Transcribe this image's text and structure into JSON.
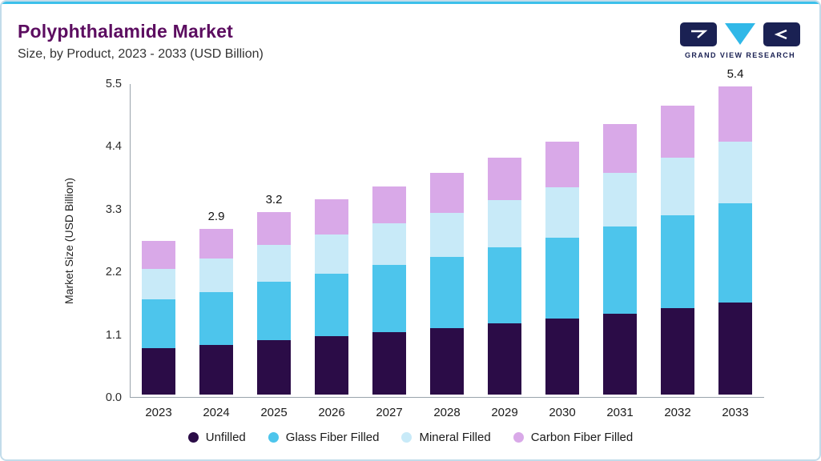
{
  "header": {
    "title": "Polyphthalamide Market",
    "subtitle": "Size, by Product, 2023 - 2033 (USD Billion)"
  },
  "logo": {
    "text": "GRAND VIEW RESEARCH"
  },
  "colors": {
    "title": "#5C0D60",
    "accent_line": "#3CC0EA",
    "card_border": "#C2DCEA",
    "logo_navy": "#1A2153",
    "logo_cyan": "#30B8E8",
    "axis": "#99A3AB"
  },
  "chart_data": {
    "type": "bar",
    "stacked": true,
    "title": "Polyphthalamide Market Size, by Product, 2023 - 2033 (USD Billion)",
    "xlabel": "",
    "ylabel": "Market Size (USD Billion)",
    "ylim": [
      0,
      5.5
    ],
    "y_ticks": [
      "0.0",
      "1.1",
      "2.2",
      "3.3",
      "4.4",
      "5.5"
    ],
    "grid": false,
    "legend_position": "bottom",
    "categories": [
      "2023",
      "2024",
      "2025",
      "2026",
      "2027",
      "2028",
      "2029",
      "2030",
      "2031",
      "2032",
      "2033"
    ],
    "series": [
      {
        "name": "Unfilled",
        "color": "#2B0C47",
        "values": [
          0.81,
          0.87,
          0.96,
          1.03,
          1.1,
          1.17,
          1.25,
          1.33,
          1.42,
          1.52,
          1.62
        ]
      },
      {
        "name": "Glass Fiber Filled",
        "color": "#4DC5EC",
        "values": [
          0.86,
          0.93,
          1.02,
          1.09,
          1.17,
          1.24,
          1.33,
          1.42,
          1.52,
          1.62,
          1.73
        ]
      },
      {
        "name": "Mineral Filled",
        "color": "#C8EAF8",
        "values": [
          0.54,
          0.58,
          0.64,
          0.68,
          0.73,
          0.78,
          0.83,
          0.89,
          0.95,
          1.01,
          1.08
        ]
      },
      {
        "name": "Carbon Fiber Filled",
        "color": "#D9A9E8",
        "values": [
          0.49,
          0.52,
          0.58,
          0.62,
          0.65,
          0.7,
          0.75,
          0.8,
          0.85,
          0.91,
          0.97
        ]
      }
    ],
    "totals": [
      2.7,
      2.9,
      3.2,
      3.42,
      3.65,
      3.89,
      4.16,
      4.44,
      4.74,
      5.06,
      5.4
    ],
    "bar_labels": {
      "2024": "2.9",
      "2025": "3.2",
      "2033": "5.4"
    }
  }
}
